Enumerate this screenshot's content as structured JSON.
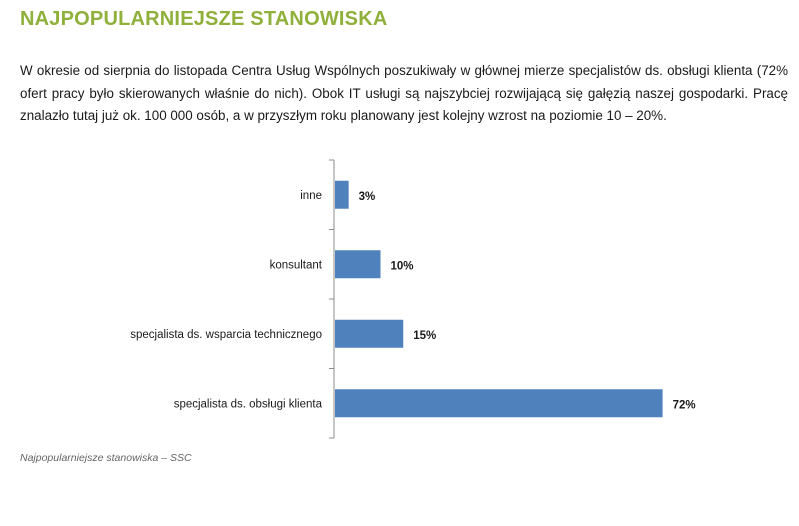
{
  "heading": "NAJPOPULARNIEJSZE STANOWISKA",
  "intro": "W okresie  od sierpnia do listopada Centra Usług Wspólnych poszukiwały w głównej mierze specjalistów ds. obsługi klienta (72% ofert pracy było skierowanych właśnie do nich). Obok IT usługi są najszybciej rozwijającą się gałęzią naszej gospodarki. Pracę znalazło tutaj już ok. 100 000 osób, a w przyszłym roku planowany jest kolejny wzrost na poziomie 10 – 20%.",
  "caption": "Najpopularniejsze stanowiska – SSC",
  "colors": {
    "heading": "#8fb03a",
    "bar": "#4f81bd",
    "axis": "#8c8c8c",
    "label": "#1a1a1a"
  },
  "chart_data": {
    "type": "bar",
    "orientation": "horizontal",
    "title": "",
    "xlabel": "",
    "ylabel": "",
    "grid": false,
    "legend": "none",
    "xlim": [
      0,
      75
    ],
    "categories": [
      "inne",
      "konsultant",
      "specjalista ds. wsparcia technicznego",
      "specjalista ds. obsługi klienta"
    ],
    "values": [
      3,
      10,
      15,
      72
    ],
    "value_labels": [
      "3%",
      "10%",
      "15%",
      "72%"
    ]
  }
}
